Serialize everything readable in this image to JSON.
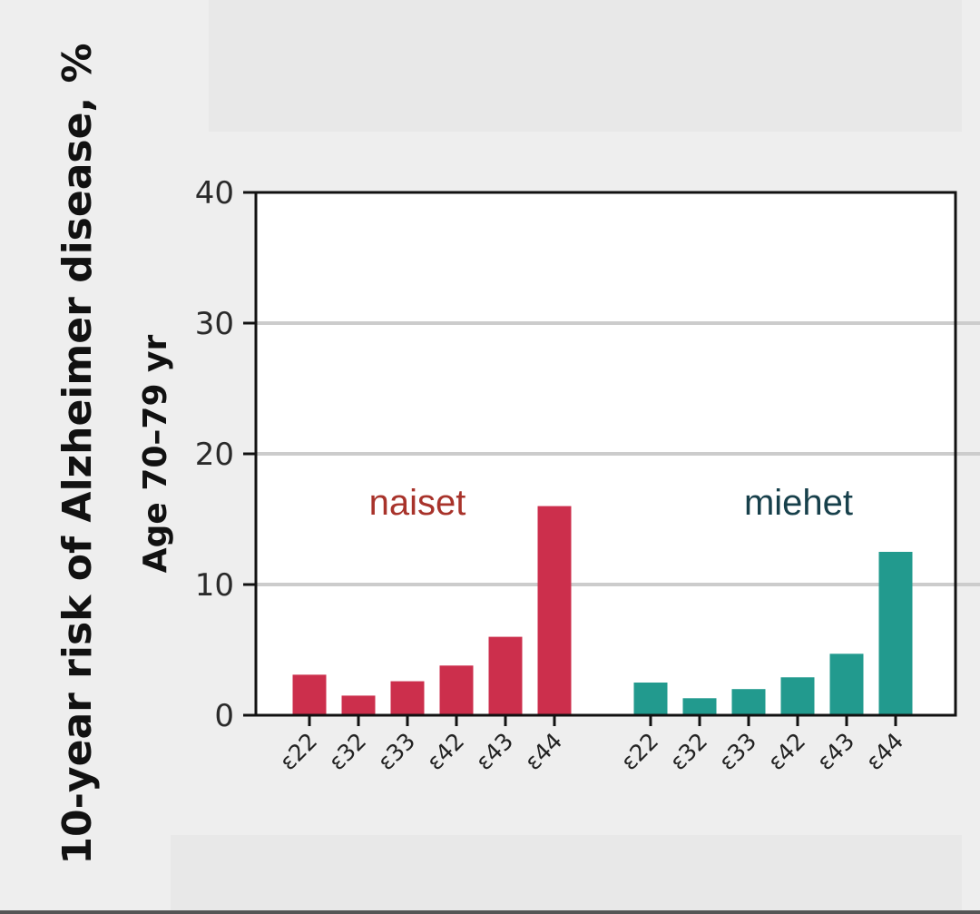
{
  "chart_data": {
    "type": "bar",
    "ylabel": "10-year risk of Alzheimer disease, %",
    "ylabel_inner": "Age 70–79 yr",
    "ylim": [
      0,
      40
    ],
    "yticks": [
      0,
      10,
      20,
      30,
      40
    ],
    "grid": true,
    "categories": [
      "ε22",
      "ε32",
      "ε33",
      "ε42",
      "ε43",
      "ε44"
    ],
    "series": [
      {
        "name": "naiset",
        "color": "#cc2f4c",
        "label_color": "#a8332b",
        "values": [
          3.1,
          1.5,
          2.6,
          3.8,
          6.0,
          16.0
        ]
      },
      {
        "name": "miehet",
        "color": "#229a8e",
        "label_color": "#17404b",
        "values": [
          2.5,
          1.3,
          2.0,
          2.9,
          4.7,
          12.5
        ]
      }
    ]
  }
}
